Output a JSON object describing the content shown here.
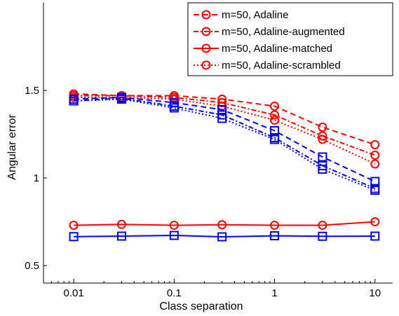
{
  "chart_data": {
    "type": "line",
    "title": "",
    "xlabel": "Class separation",
    "ylabel": "Angular error",
    "xscale": "log",
    "xlim": [
      0.005,
      15
    ],
    "ylim": [
      0.4,
      2.0
    ],
    "xticks": [
      0.01,
      0.1,
      1,
      10
    ],
    "xtick_labels": [
      "0.01",
      "0.1",
      "1",
      "10"
    ],
    "yticks": [
      0.5,
      1,
      1.5
    ],
    "ytick_labels": [
      "0.5",
      "1",
      "1.5"
    ],
    "grid": false,
    "legend_position": "top-right",
    "x": [
      0.01,
      0.03,
      0.1,
      0.3,
      1,
      3,
      10
    ],
    "series": [
      {
        "name": "m=50, Adaline",
        "in_legend": true,
        "color": "#ff0000",
        "dash": "dashed",
        "marker": "circle",
        "values": [
          1.48,
          1.47,
          1.47,
          1.45,
          1.41,
          1.29,
          1.19
        ]
      },
      {
        "name": "m=50, Adaline-augmented",
        "in_legend": true,
        "color": "#ff0000",
        "dash": "dash-dot",
        "marker": "circle",
        "values": [
          1.47,
          1.47,
          1.46,
          1.43,
          1.36,
          1.24,
          1.13
        ]
      },
      {
        "name": "m=50, Adaline-matched",
        "in_legend": true,
        "color": "#ff0000",
        "dash": "solid",
        "marker": "circle",
        "values": [
          0.73,
          0.735,
          0.73,
          0.733,
          0.73,
          0.73,
          0.75
        ]
      },
      {
        "name": "m=50, Adaline-scrambled",
        "in_legend": true,
        "color": "#ff0000",
        "dash": "dotted",
        "marker": "circle",
        "values": [
          1.46,
          1.46,
          1.45,
          1.41,
          1.33,
          1.22,
          1.08
        ]
      },
      {
        "in_legend": false,
        "color": "#0000ff",
        "dash": "dashed",
        "marker": "square",
        "values": [
          1.45,
          1.46,
          1.43,
          1.39,
          1.27,
          1.12,
          0.98
        ]
      },
      {
        "in_legend": false,
        "color": "#0000ff",
        "dash": "dash-dot",
        "marker": "square",
        "values": [
          1.44,
          1.455,
          1.41,
          1.36,
          1.23,
          1.07,
          0.94
        ]
      },
      {
        "in_legend": false,
        "color": "#0000ff",
        "dash": "solid",
        "marker": "square",
        "values": [
          0.665,
          0.668,
          0.672,
          0.664,
          0.67,
          0.667,
          0.668
        ]
      },
      {
        "in_legend": false,
        "color": "#0000ff",
        "dash": "dotted",
        "marker": "square",
        "values": [
          1.44,
          1.45,
          1.4,
          1.34,
          1.22,
          1.05,
          0.93
        ]
      }
    ]
  }
}
